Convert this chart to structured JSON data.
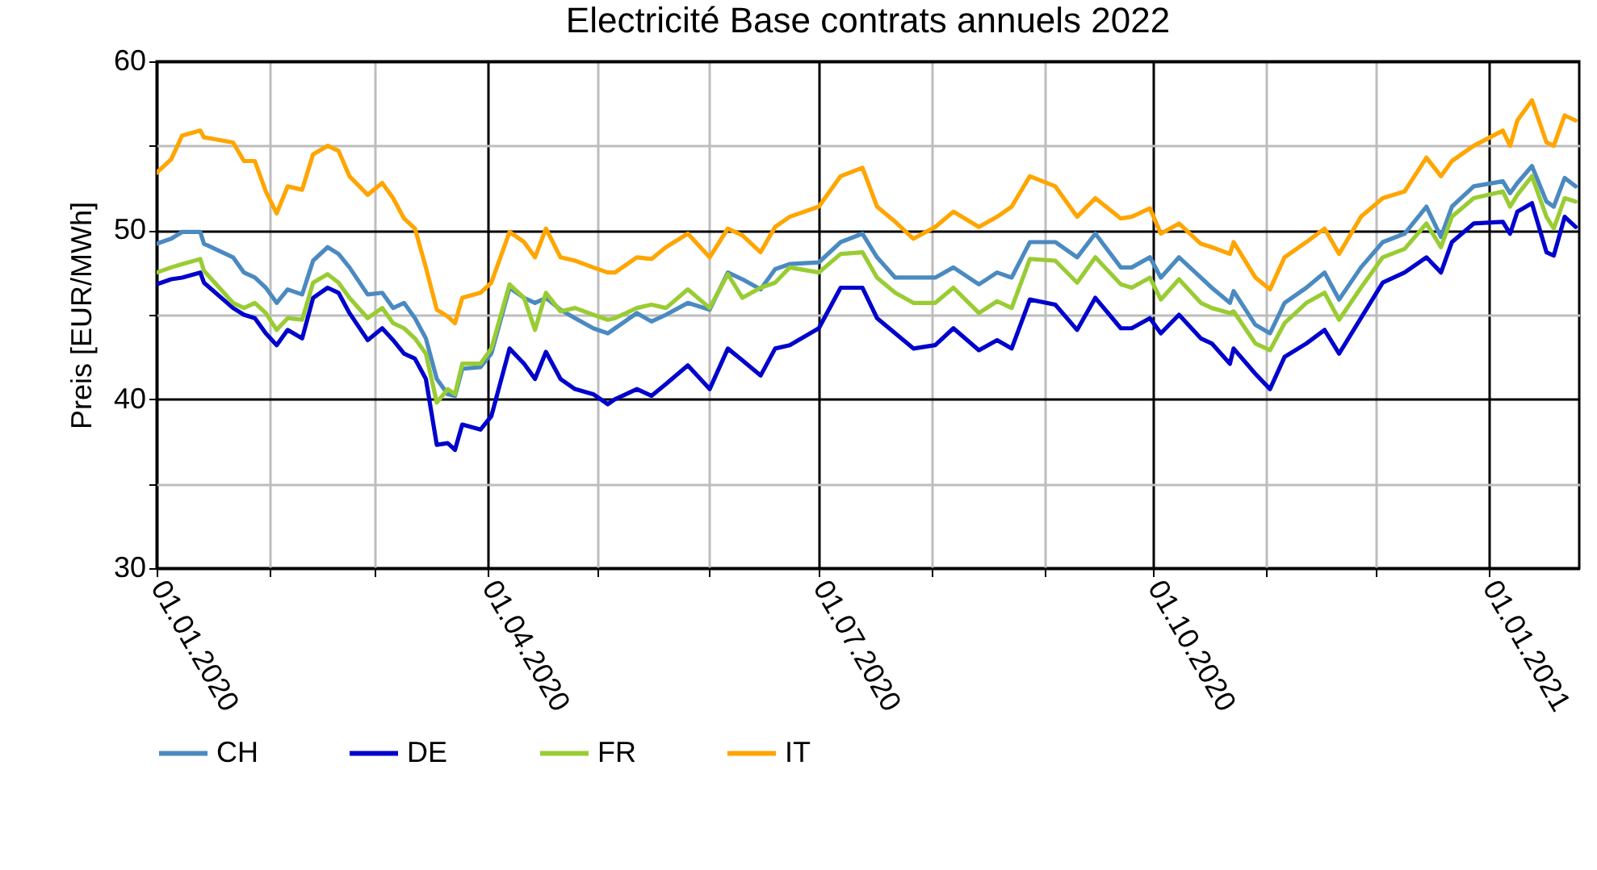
{
  "chart_data": {
    "type": "line",
    "title": "Electricité Base contrats annuels 2022",
    "ylabel": "Preis [EUR/MWh]",
    "x": [
      "2020-01-01",
      "2020-01-05",
      "2020-01-08",
      "2020-01-13",
      "2020-01-14",
      "2020-01-22",
      "2020-01-25",
      "2020-01-28",
      "2020-01-31",
      "2020-02-03",
      "2020-02-06",
      "2020-02-10",
      "2020-02-13",
      "2020-02-17",
      "2020-02-20",
      "2020-02-23",
      "2020-02-28",
      "2020-03-03",
      "2020-03-06",
      "2020-03-09",
      "2020-03-12",
      "2020-03-15",
      "2020-03-18",
      "2020-03-21",
      "2020-03-23",
      "2020-03-25",
      "2020-03-30",
      "2020-04-02",
      "2020-04-07",
      "2020-04-11",
      "2020-04-14",
      "2020-04-17",
      "2020-04-21",
      "2020-04-25",
      "2020-04-30",
      "2020-05-04",
      "2020-05-06",
      "2020-05-12",
      "2020-05-16",
      "2020-05-20",
      "2020-05-26",
      "2020-06-01",
      "2020-06-06",
      "2020-06-10",
      "2020-06-15",
      "2020-06-19",
      "2020-06-23",
      "2020-07-01",
      "2020-07-07",
      "2020-07-13",
      "2020-07-17",
      "2020-07-22",
      "2020-07-27",
      "2020-08-02",
      "2020-08-07",
      "2020-08-14",
      "2020-08-19",
      "2020-08-23",
      "2020-08-28",
      "2020-09-04",
      "2020-09-10",
      "2020-09-15",
      "2020-09-22",
      "2020-09-25",
      "2020-09-30",
      "2020-10-03",
      "2020-10-08",
      "2020-10-14",
      "2020-10-17",
      "2020-10-22",
      "2020-10-23",
      "2020-10-29",
      "2020-11-02",
      "2020-11-06",
      "2020-11-12",
      "2020-11-17",
      "2020-11-21",
      "2020-11-27",
      "2020-12-03",
      "2020-12-09",
      "2020-12-15",
      "2020-12-19",
      "2020-12-22",
      "2020-12-28",
      "2021-01-05",
      "2021-01-07",
      "2021-01-09",
      "2021-01-13",
      "2021-01-17",
      "2021-01-19",
      "2021-01-22",
      "2021-01-25"
    ],
    "series": [
      {
        "name": "CH",
        "color": "#4a8ac0",
        "values": [
          49.2,
          49.5,
          49.9,
          49.9,
          49.2,
          48.4,
          47.5,
          47.2,
          46.6,
          45.7,
          46.5,
          46.2,
          48.2,
          49.0,
          48.6,
          47.8,
          46.2,
          46.3,
          45.4,
          45.7,
          44.8,
          43.6,
          41.2,
          40.3,
          40.2,
          41.8,
          41.9,
          42.7,
          46.6,
          46.0,
          45.7,
          46.0,
          45.3,
          44.8,
          44.2,
          43.9,
          44.2,
          45.1,
          44.6,
          45.0,
          45.7,
          45.3,
          47.5,
          47.1,
          46.5,
          47.7,
          48.0,
          48.1,
          49.3,
          49.8,
          48.4,
          47.2,
          47.2,
          47.2,
          47.8,
          46.8,
          47.5,
          47.2,
          49.3,
          49.3,
          48.4,
          49.8,
          47.8,
          47.8,
          48.4,
          47.2,
          48.4,
          47.2,
          46.6,
          45.7,
          46.4,
          44.4,
          43.9,
          45.7,
          46.6,
          47.5,
          45.9,
          47.8,
          49.3,
          49.8,
          51.4,
          49.6,
          51.4,
          52.6,
          52.9,
          52.2,
          52.8,
          53.8,
          51.7,
          51.4,
          53.1,
          52.6
        ]
      },
      {
        "name": "DE",
        "color": "#0000cc",
        "values": [
          46.8,
          47.1,
          47.2,
          47.5,
          46.9,
          45.4,
          45.0,
          44.8,
          43.9,
          43.2,
          44.1,
          43.6,
          46.0,
          46.6,
          46.3,
          45.1,
          43.5,
          44.2,
          43.5,
          42.7,
          42.4,
          41.2,
          37.3,
          37.4,
          37.0,
          38.5,
          38.2,
          39.0,
          43.0,
          42.1,
          41.2,
          42.8,
          41.2,
          40.6,
          40.3,
          39.7,
          40.0,
          40.6,
          40.2,
          40.9,
          42.0,
          40.6,
          43.0,
          42.3,
          41.4,
          43.0,
          43.2,
          44.2,
          46.6,
          46.6,
          44.8,
          43.9,
          43.0,
          43.2,
          44.2,
          42.9,
          43.5,
          43.0,
          45.9,
          45.6,
          44.1,
          46.0,
          44.2,
          44.2,
          44.8,
          43.9,
          45.0,
          43.6,
          43.3,
          42.1,
          43.0,
          41.5,
          40.6,
          42.5,
          43.3,
          44.1,
          42.7,
          44.8,
          46.9,
          47.5,
          48.4,
          47.5,
          49.3,
          50.4,
          50.5,
          49.8,
          51.1,
          51.6,
          48.7,
          48.5,
          50.8,
          50.2
        ]
      },
      {
        "name": "FR",
        "color": "#99cc33",
        "values": [
          47.5,
          47.8,
          48.0,
          48.3,
          47.6,
          45.7,
          45.4,
          45.7,
          45.1,
          44.1,
          44.8,
          44.7,
          46.9,
          47.4,
          46.9,
          46.0,
          44.8,
          45.4,
          44.5,
          44.2,
          43.6,
          42.7,
          39.8,
          40.6,
          40.3,
          42.1,
          42.1,
          43.0,
          46.8,
          46.0,
          44.1,
          46.3,
          45.2,
          45.4,
          45.0,
          44.7,
          44.8,
          45.4,
          45.6,
          45.4,
          46.5,
          45.4,
          47.4,
          46.0,
          46.6,
          46.9,
          47.8,
          47.5,
          48.6,
          48.7,
          47.2,
          46.3,
          45.7,
          45.7,
          46.6,
          45.1,
          45.8,
          45.4,
          48.3,
          48.2,
          46.9,
          48.4,
          46.8,
          46.6,
          47.2,
          45.9,
          47.1,
          45.7,
          45.4,
          45.1,
          45.2,
          43.3,
          42.9,
          44.5,
          45.7,
          46.3,
          44.7,
          46.6,
          48.4,
          48.9,
          50.4,
          49.0,
          50.8,
          51.9,
          52.3,
          51.4,
          52.1,
          53.2,
          50.8,
          50.1,
          51.9,
          51.7
        ]
      },
      {
        "name": "IT",
        "color": "#ffa500",
        "values": [
          53.4,
          54.2,
          55.6,
          55.9,
          55.5,
          55.2,
          54.1,
          54.1,
          52.3,
          51.0,
          52.6,
          52.4,
          54.5,
          55.0,
          54.7,
          53.2,
          52.1,
          52.8,
          51.9,
          50.7,
          50.1,
          47.8,
          45.3,
          44.9,
          44.5,
          46.0,
          46.3,
          46.9,
          49.9,
          49.3,
          48.4,
          50.1,
          48.4,
          48.2,
          47.8,
          47.5,
          47.5,
          48.4,
          48.3,
          49.0,
          49.8,
          48.4,
          50.1,
          49.7,
          48.7,
          50.2,
          50.8,
          51.4,
          53.2,
          53.7,
          51.4,
          50.5,
          49.5,
          50.2,
          51.1,
          50.2,
          50.8,
          51.4,
          53.2,
          52.6,
          50.8,
          51.9,
          50.7,
          50.8,
          51.3,
          49.8,
          50.4,
          49.2,
          49.0,
          48.6,
          49.3,
          47.2,
          46.5,
          48.4,
          49.3,
          50.1,
          48.6,
          50.8,
          51.9,
          52.3,
          54.3,
          53.2,
          54.1,
          55.0,
          55.9,
          55.0,
          56.5,
          57.7,
          55.2,
          55.0,
          56.8,
          56.5
        ]
      }
    ],
    "xlim": [
      "2020-01-01",
      "2021-01-26"
    ],
    "xticks": [
      {
        "value": "2020-01-01",
        "label": "01.01.2020"
      },
      {
        "value": "2020-02-01",
        "label": null
      },
      {
        "value": "2020-03-01",
        "label": null
      },
      {
        "value": "2020-04-01",
        "label": "01.04.2020"
      },
      {
        "value": "2020-05-01",
        "label": null
      },
      {
        "value": "2020-06-01",
        "label": null
      },
      {
        "value": "2020-07-01",
        "label": "01.07.2020"
      },
      {
        "value": "2020-08-01",
        "label": null
      },
      {
        "value": "2020-09-01",
        "label": null
      },
      {
        "value": "2020-10-01",
        "label": "01.10.2020"
      },
      {
        "value": "2020-11-01",
        "label": null
      },
      {
        "value": "2020-12-01",
        "label": null
      },
      {
        "value": "2021-01-01",
        "label": "01.01.2021"
      }
    ],
    "ylim": [
      30,
      60
    ],
    "yticks": [
      30,
      {
        "value": 35,
        "label": null
      },
      40,
      {
        "value": 45,
        "label": null
      },
      50,
      {
        "value": 55,
        "label": null
      },
      60
    ],
    "grid": true,
    "legend": "bottom",
    "line_style": "solid",
    "marker": "none"
  }
}
